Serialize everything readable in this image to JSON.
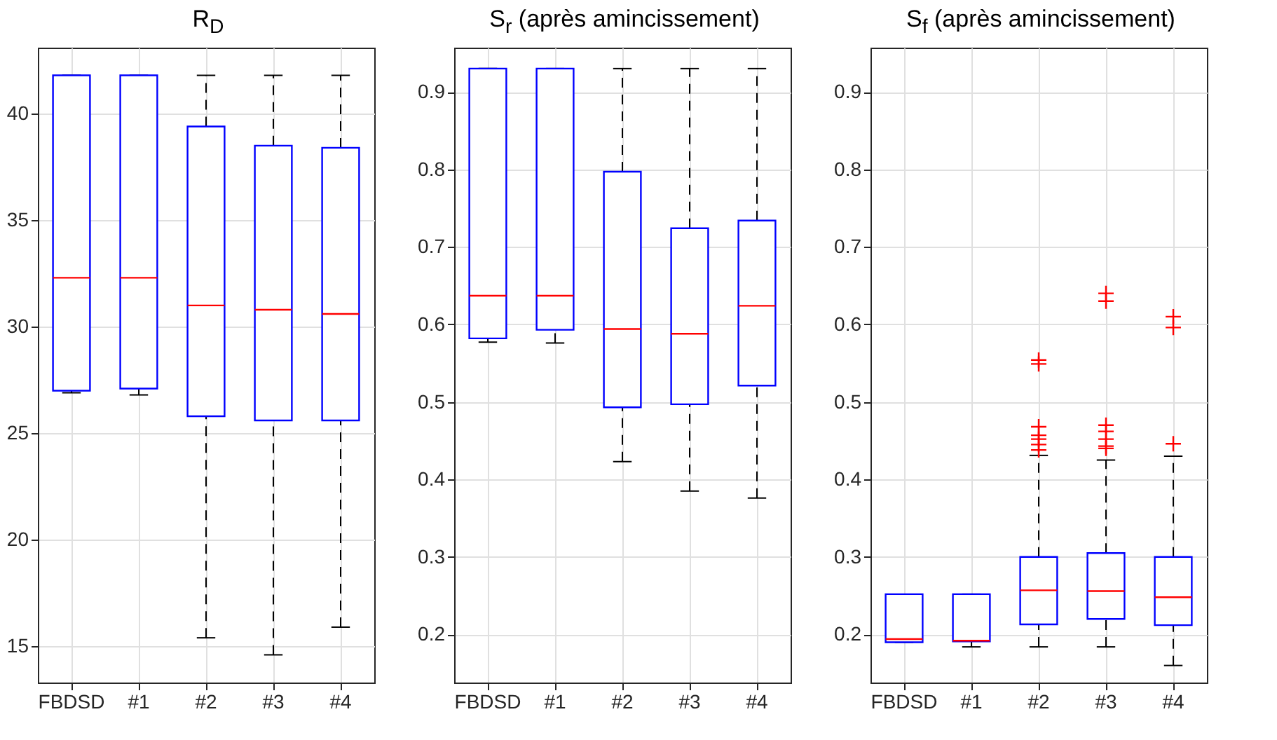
{
  "chart_data": [
    {
      "type": "box",
      "title": "R$_{D}$",
      "categories": [
        "FBDSD",
        "#1",
        "#2",
        "#3",
        "#4"
      ],
      "color": "#0000ff",
      "grid": true,
      "ylim": [
        13.3,
        43.1
      ],
      "yticks": [
        15,
        20,
        25,
        30,
        35,
        40
      ],
      "boxes": [
        {
          "low": 26.9,
          "q1": 27.0,
          "median": 32.3,
          "q3": 41.8,
          "high": 41.8
        },
        {
          "low": 26.8,
          "q1": 27.1,
          "median": 32.3,
          "q3": 41.8,
          "high": 41.8
        },
        {
          "low": 15.4,
          "q1": 25.8,
          "median": 31.0,
          "q3": 39.4,
          "high": 41.8
        },
        {
          "low": 14.6,
          "q1": 25.6,
          "median": 30.8,
          "q3": 38.5,
          "high": 41.8
        },
        {
          "low": 15.9,
          "q1": 25.6,
          "median": 30.6,
          "q3": 38.4,
          "high": 41.8
        }
      ]
    },
    {
      "type": "box",
      "title": "S$_{r}$ (après amincissement)",
      "categories": [
        "FBDSD",
        "#1",
        "#2",
        "#3",
        "#4"
      ],
      "color": "#0000ff",
      "grid": true,
      "ylim": [
        0.138,
        0.957
      ],
      "yticks": [
        0.2,
        0.3,
        0.4,
        0.5,
        0.6,
        0.7,
        0.8,
        0.9
      ],
      "boxes": [
        {
          "low": 0.577,
          "q1": 0.582,
          "median": 0.637,
          "q3": 0.93,
          "high": 0.93
        },
        {
          "low": 0.576,
          "q1": 0.593,
          "median": 0.637,
          "q3": 0.93,
          "high": 0.93
        },
        {
          "low": 0.423,
          "q1": 0.493,
          "median": 0.594,
          "q3": 0.797,
          "high": 0.93
        },
        {
          "low": 0.385,
          "q1": 0.497,
          "median": 0.588,
          "q3": 0.724,
          "high": 0.93
        },
        {
          "low": 0.376,
          "q1": 0.521,
          "median": 0.624,
          "q3": 0.734,
          "high": 0.93
        }
      ]
    },
    {
      "type": "box",
      "title": "S$_{f}$ (après amincissement)",
      "categories": [
        "FBDSD",
        "#1",
        "#2",
        "#3",
        "#4"
      ],
      "color": "#0000ff",
      "grid": true,
      "ylim": [
        0.138,
        0.957
      ],
      "yticks": [
        0.2,
        0.3,
        0.4,
        0.5,
        0.6,
        0.7,
        0.8,
        0.9
      ],
      "boxes": [
        {
          "low": 0.19,
          "q1": 0.19,
          "median": 0.194,
          "q3": 0.252,
          "high": 0.252
        },
        {
          "low": 0.184,
          "q1": 0.191,
          "median": 0.192,
          "q3": 0.252,
          "high": 0.252
        },
        {
          "low": 0.184,
          "q1": 0.213,
          "median": 0.257,
          "q3": 0.3,
          "high": 0.431,
          "outliers": [
            0.554,
            0.549,
            0.468,
            0.457,
            0.452,
            0.445,
            0.438
          ]
        },
        {
          "low": 0.184,
          "q1": 0.22,
          "median": 0.256,
          "q3": 0.305,
          "high": 0.425,
          "outliers": [
            0.64,
            0.63,
            0.47,
            0.462,
            0.452,
            0.443,
            0.44
          ]
        },
        {
          "low": 0.16,
          "q1": 0.212,
          "median": 0.248,
          "q3": 0.3,
          "high": 0.43,
          "outliers": [
            0.61,
            0.596,
            0.446
          ]
        }
      ]
    }
  ]
}
